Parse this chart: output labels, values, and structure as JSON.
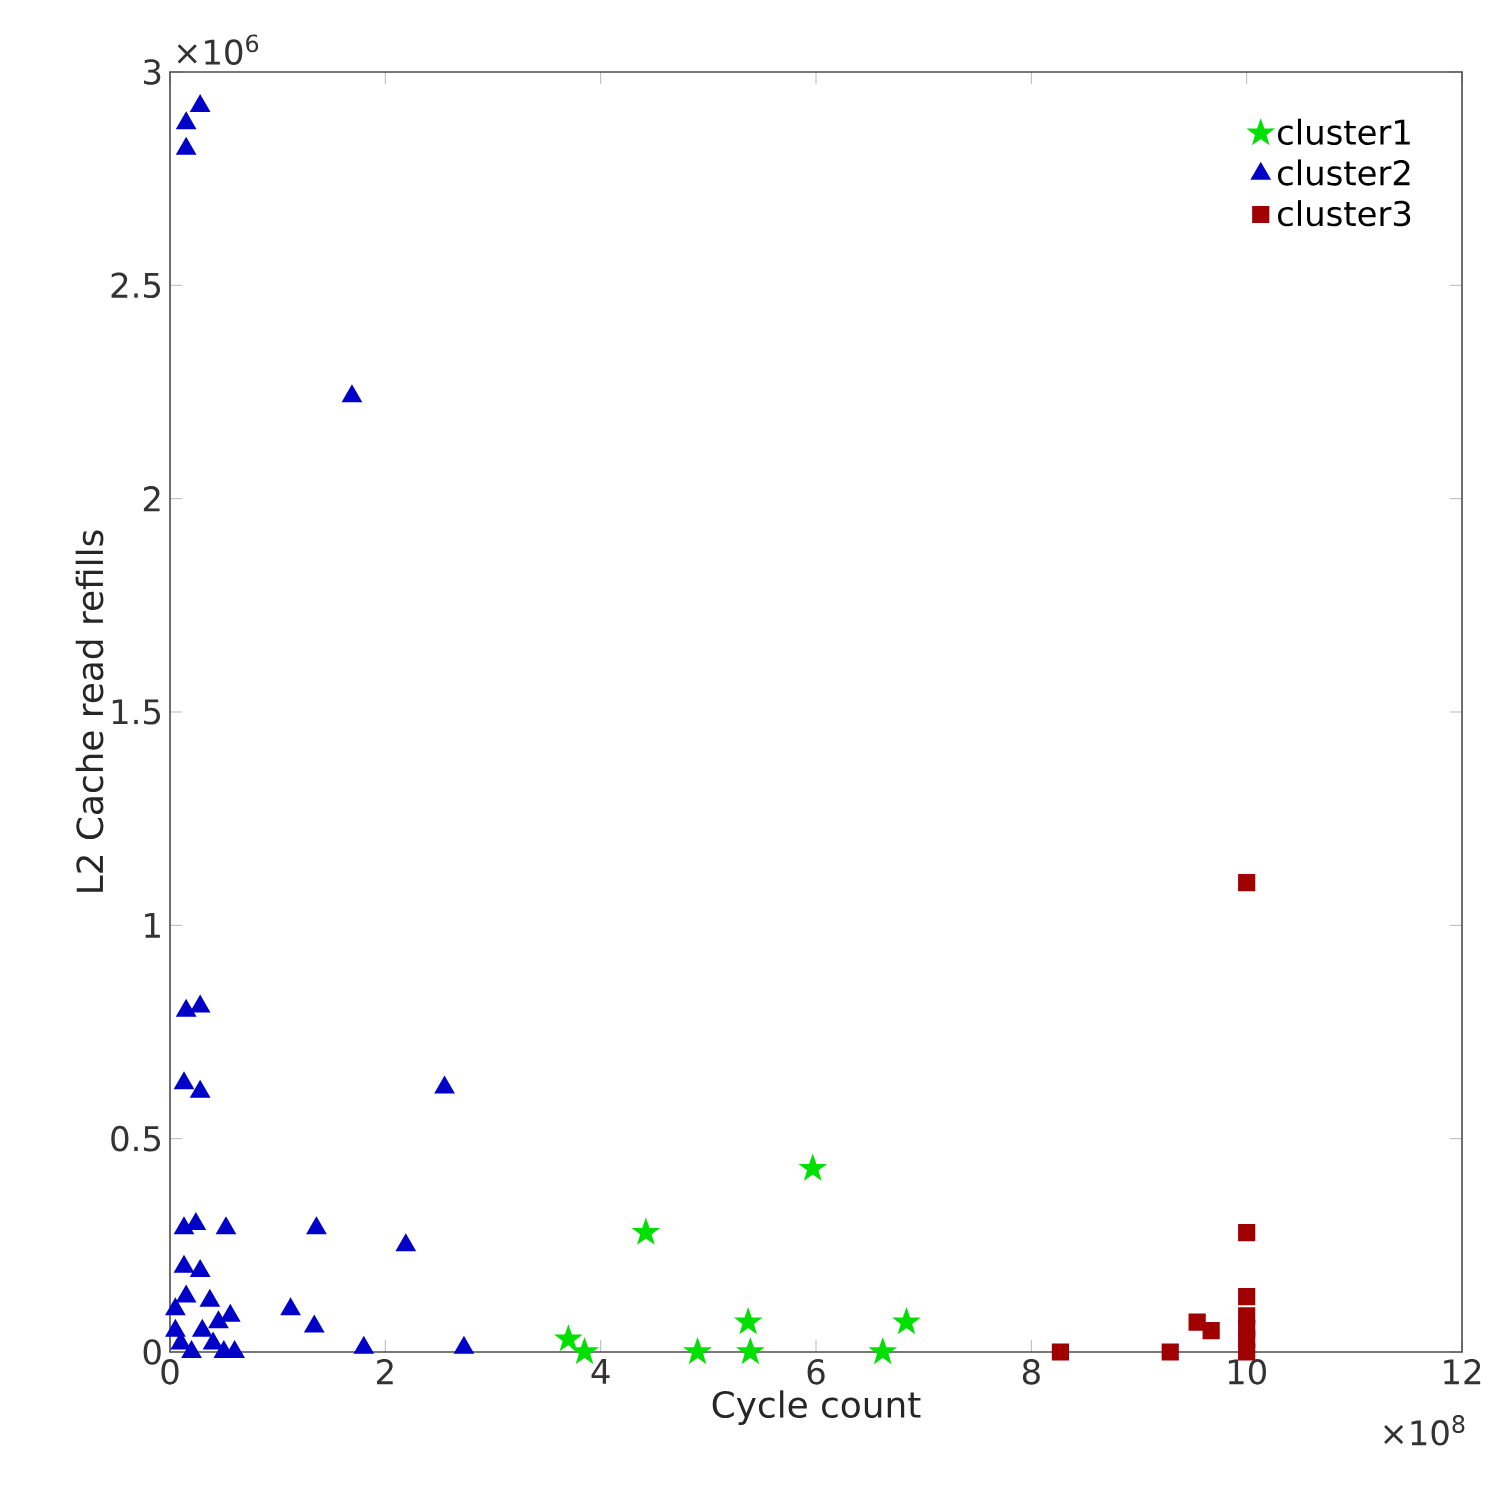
{
  "chart_data": {
    "type": "scatter",
    "xlabel": "Cycle count",
    "ylabel": "L2 Cache read refills",
    "annotations": [
      "×10$^{6}$",
      "×10$^{8}$"
    ],
    "xlim": [
      0,
      12
    ],
    "ylim": [
      0,
      3
    ],
    "xticks": [
      0,
      2,
      4,
      6,
      8,
      10,
      12
    ],
    "yticks": [
      0,
      0.5,
      1,
      1.5,
      2,
      2.5,
      3
    ],
    "legend": "top right",
    "grid": false,
    "series": [
      {
        "name": "cluster1",
        "color": "#00e000",
        "marker": "star",
        "x": [
          3.7,
          3.85,
          4.42,
          4.9,
          5.37,
          5.39,
          5.97,
          6.62,
          6.84
        ],
        "values": [
          0.03,
          0.0,
          0.28,
          0.0,
          0.07,
          0.0,
          0.43,
          0.0,
          0.07
        ]
      },
      {
        "name": "cluster2",
        "color": "#0000c8",
        "marker": "triangle",
        "x": [
          0.28,
          0.15,
          0.15,
          1.69,
          0.15,
          0.28,
          0.13,
          0.28,
          2.55,
          0.13,
          0.24,
          0.52,
          1.36,
          2.19,
          0.13,
          0.28,
          0.37,
          0.15,
          0.56,
          1.12,
          1.34,
          1.8,
          2.73,
          0.05,
          0.1,
          0.2,
          0.3,
          0.4,
          0.5,
          0.6,
          0.05,
          0.45
        ],
        "values": [
          2.92,
          2.88,
          2.82,
          2.24,
          0.8,
          0.81,
          0.63,
          0.61,
          0.62,
          0.29,
          0.3,
          0.29,
          0.29,
          0.25,
          0.2,
          0.19,
          0.12,
          0.13,
          0.085,
          0.1,
          0.06,
          0.01,
          0.01,
          0.05,
          0.02,
          0.0,
          0.05,
          0.02,
          0.0,
          0.0,
          0.1,
          0.07
        ]
      },
      {
        "name": "cluster3",
        "color": "#a00000",
        "marker": "square",
        "x": [
          8.27,
          9.29,
          9.54,
          9.67,
          10.0,
          10.0,
          10.0,
          10.0,
          10.0,
          10.0,
          10.0
        ],
        "values": [
          0.0,
          0.0,
          0.07,
          0.05,
          1.1,
          0.28,
          0.13,
          0.085,
          0.055,
          0.03,
          0.0
        ]
      }
    ]
  }
}
